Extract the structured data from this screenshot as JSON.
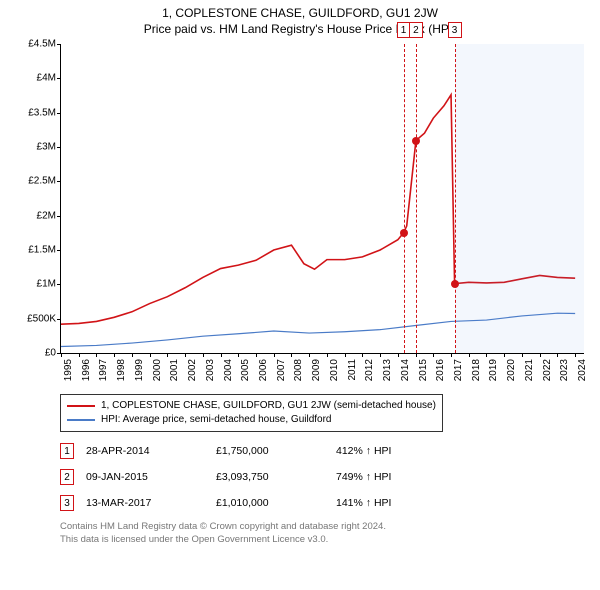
{
  "title": "1, COPLESTONE CHASE, GUILDFORD, GU1 2JW",
  "subtitle": "Price paid vs. HM Land Registry's House Price Index (HPI)",
  "chart": {
    "type": "line",
    "background_color": "#ffffff",
    "xlim": [
      1995,
      2024.5
    ],
    "ylim": [
      0,
      4500000
    ],
    "ytick_step": 500000,
    "ytick_labels": [
      "£0",
      "£500K",
      "£1M",
      "£1.5M",
      "£2M",
      "£2.5M",
      "£3M",
      "£3.5M",
      "£4M",
      "£4.5M"
    ],
    "xtick_step": 1,
    "xtick_labels": [
      "1995",
      "1996",
      "1997",
      "1998",
      "1999",
      "2000",
      "2001",
      "2002",
      "2003",
      "2004",
      "2005",
      "2006",
      "2007",
      "2008",
      "2009",
      "2010",
      "2011",
      "2012",
      "2013",
      "2014",
      "2015",
      "2016",
      "2017",
      "2018",
      "2019",
      "2020",
      "2021",
      "2022",
      "2023",
      "2024"
    ],
    "shaded_region": {
      "x_start": 2017.2,
      "x_end": 2024.5,
      "fill": "rgba(100,150,230,0.08)"
    },
    "series": [
      {
        "name": "price_paid",
        "label": "1, COPLESTONE CHASE, GUILDFORD, GU1 2JW (semi-detached house)",
        "color": "#d11317",
        "line_width": 1.6,
        "data": [
          [
            1995,
            420000
          ],
          [
            1996,
            430000
          ],
          [
            1997,
            460000
          ],
          [
            1998,
            520000
          ],
          [
            1999,
            600000
          ],
          [
            2000,
            720000
          ],
          [
            2001,
            820000
          ],
          [
            2002,
            950000
          ],
          [
            2003,
            1100000
          ],
          [
            2004,
            1230000
          ],
          [
            2005,
            1280000
          ],
          [
            2006,
            1350000
          ],
          [
            2007,
            1500000
          ],
          [
            2008,
            1570000
          ],
          [
            2008.7,
            1300000
          ],
          [
            2009.3,
            1220000
          ],
          [
            2010,
            1360000
          ],
          [
            2011,
            1360000
          ],
          [
            2012,
            1400000
          ],
          [
            2013,
            1500000
          ],
          [
            2014,
            1650000
          ],
          [
            2014.32,
            1750000
          ],
          [
            2014.5,
            1850000
          ],
          [
            2015.02,
            3093750
          ],
          [
            2015.5,
            3200000
          ],
          [
            2016,
            3420000
          ],
          [
            2016.6,
            3600000
          ],
          [
            2017.0,
            3760000
          ],
          [
            2017.2,
            1010000
          ],
          [
            2018,
            1030000
          ],
          [
            2019,
            1020000
          ],
          [
            2020,
            1030000
          ],
          [
            2021,
            1080000
          ],
          [
            2022,
            1130000
          ],
          [
            2023,
            1100000
          ],
          [
            2024,
            1090000
          ]
        ]
      },
      {
        "name": "hpi",
        "label": "HPI: Average price, semi-detached house, Guildford",
        "color": "#4a7bc7",
        "line_width": 1.2,
        "data": [
          [
            1995,
            95000
          ],
          [
            1997,
            110000
          ],
          [
            1999,
            145000
          ],
          [
            2001,
            190000
          ],
          [
            2003,
            245000
          ],
          [
            2005,
            280000
          ],
          [
            2007,
            320000
          ],
          [
            2009,
            290000
          ],
          [
            2011,
            310000
          ],
          [
            2013,
            340000
          ],
          [
            2015,
            400000
          ],
          [
            2017,
            460000
          ],
          [
            2019,
            480000
          ],
          [
            2021,
            540000
          ],
          [
            2023,
            580000
          ],
          [
            2024,
            575000
          ]
        ]
      }
    ],
    "markers": [
      {
        "n": "1",
        "x": 2014.32,
        "y": 1750000,
        "color": "#d11317"
      },
      {
        "n": "2",
        "x": 2015.02,
        "y": 3093750,
        "color": "#d11317"
      },
      {
        "n": "3",
        "x": 2017.2,
        "y": 1010000,
        "color": "#d11317"
      }
    ]
  },
  "legend": {
    "items": [
      {
        "color": "#d11317",
        "label": "1, COPLESTONE CHASE, GUILDFORD, GU1 2JW (semi-detached house)"
      },
      {
        "color": "#4a7bc7",
        "label": "HPI: Average price, semi-detached house, Guildford"
      }
    ]
  },
  "transactions": [
    {
      "n": "1",
      "color": "#d11317",
      "date": "28-APR-2014",
      "price": "£1,750,000",
      "delta": "412% ↑ HPI"
    },
    {
      "n": "2",
      "color": "#d11317",
      "date": "09-JAN-2015",
      "price": "£3,093,750",
      "delta": "749% ↑ HPI"
    },
    {
      "n": "3",
      "color": "#d11317",
      "date": "13-MAR-2017",
      "price": "£1,010,000",
      "delta": "141% ↑ HPI"
    }
  ],
  "footer": {
    "line1": "Contains HM Land Registry data © Crown copyright and database right 2024.",
    "line2": "This data is licensed under the Open Government Licence v3.0."
  }
}
